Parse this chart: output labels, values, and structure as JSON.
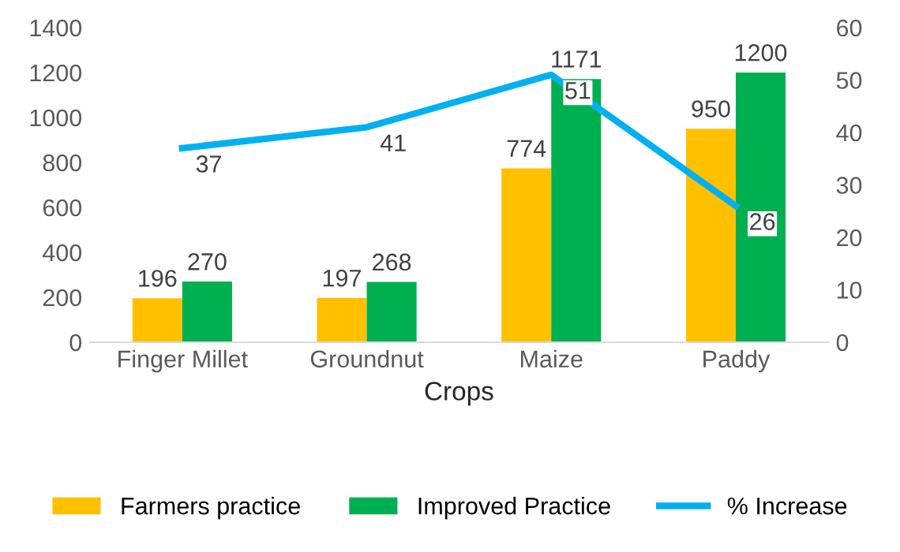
{
  "chart_data": {
    "type": "bar",
    "xlabel": "Crops",
    "categories": [
      "Finger Millet",
      "Groundnut",
      "Maize",
      "Paddy"
    ],
    "series": [
      {
        "name": "Farmers practice",
        "color": "#ffc000",
        "values": [
          196,
          197,
          774,
          950
        ]
      },
      {
        "name": "Improved Practice",
        "color": "#00b050",
        "values": [
          270,
          268,
          1171,
          1200
        ]
      },
      {
        "name": "% Increase",
        "color": "#00b0f0",
        "type": "line",
        "axis": "y2",
        "values": [
          37,
          41,
          51,
          26
        ]
      }
    ],
    "ylim": [
      0,
      1400
    ],
    "yticks": [
      0,
      200,
      400,
      600,
      800,
      1000,
      1200,
      1400
    ],
    "y2lim": [
      0,
      60
    ],
    "y2ticks": [
      0,
      10,
      20,
      30,
      40,
      50,
      60
    ],
    "data_labels": true,
    "legend": "bottom",
    "grid": false,
    "marker": "none",
    "line_style": "solid"
  }
}
